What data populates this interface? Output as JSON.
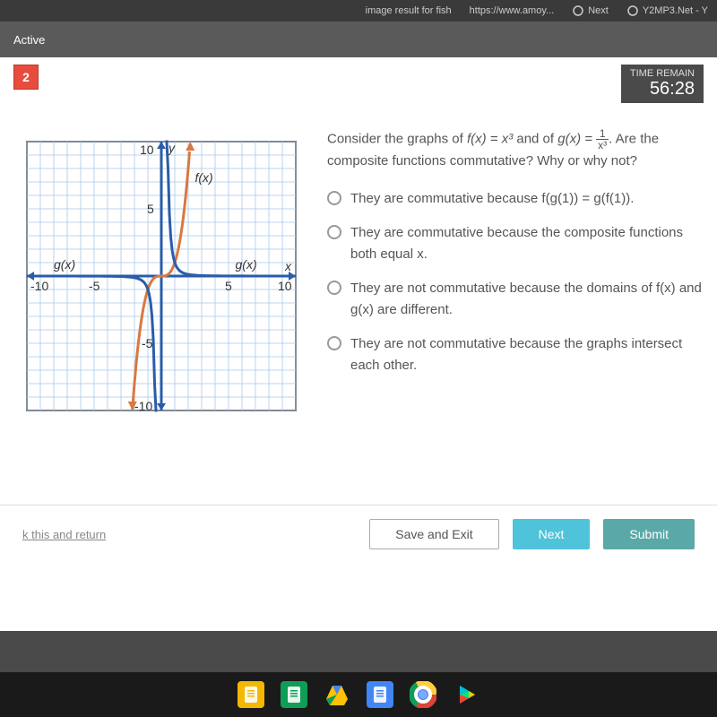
{
  "browser": {
    "tab_fragment1": "image result for fish",
    "url_fragment": "https://www.amoy...",
    "nav_next": "Next",
    "tab_right": "Y2MP3.Net - Y"
  },
  "header": {
    "active_label": "Active",
    "timer_label": "TIME REMAIN",
    "timer_value": "56:28"
  },
  "question": {
    "number": "2",
    "prompt_prefix": "Consider the graphs of ",
    "fx": "f(x) = x³",
    "and": " and of ",
    "gx": "g(x) = ",
    "frac_num": "1",
    "frac_den": "x³",
    "prompt_suffix": ". Are the composite functions commutative? Why or why not?",
    "options": [
      "They are commutative because f(g(1)) = g(f(1)).",
      "They are commutative because the composite functions both equal x.",
      "They are not commutative because the domains of f(x) and g(x) are different.",
      "They are not commutative because the graphs intersect each other."
    ]
  },
  "chart": {
    "type": "line",
    "xlim": [
      -10,
      10
    ],
    "ylim": [
      -10,
      10
    ],
    "xtick_step": 5,
    "ytick_step": 5,
    "grid_color": "#a8c8e8",
    "background_color": "#ffffff",
    "border_color": "#000000",
    "axis_color": "#2a5caa",
    "axis_width": 3,
    "fx_color": "#d97840",
    "gx_color": "#2a5caa",
    "line_width": 3,
    "labels": {
      "y_axis": "y",
      "x_axis": "x",
      "fx": "f(x)",
      "gx": "g(x)",
      "ticks_x": [
        "-10",
        "-5",
        "5",
        "10"
      ],
      "ticks_y": [
        "10",
        "5",
        "-5",
        "-10"
      ]
    },
    "label_fontsize": 14,
    "label_fontstyle": "italic"
  },
  "footer": {
    "mark_link": "k this and return",
    "save_btn": "Save and Exit",
    "next_btn": "Next",
    "submit_btn": "Submit"
  },
  "taskbar": {
    "icons": [
      {
        "bg": "#f5b800",
        "name": "slides-icon"
      },
      {
        "bg": "#0f9d58",
        "name": "sheets-icon"
      },
      {
        "bg": "#f5b800",
        "name": "drive-icon"
      },
      {
        "bg": "#4285f4",
        "name": "docs-icon"
      },
      {
        "bg": "#ffffff",
        "name": "chrome-icon"
      },
      {
        "bg": "#ffffff",
        "name": "play-icon"
      }
    ]
  }
}
